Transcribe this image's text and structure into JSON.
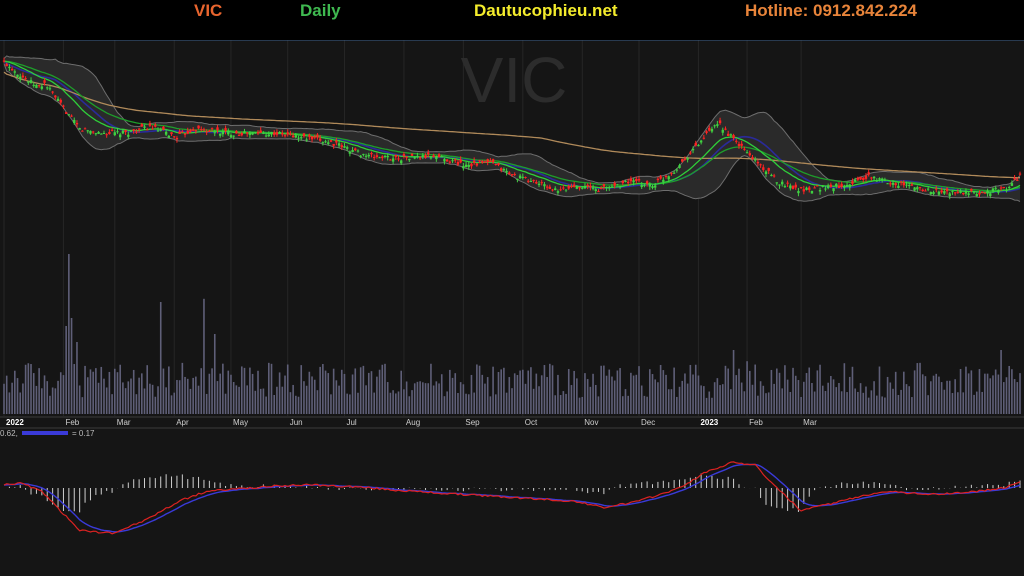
{
  "header": {
    "symbol": "VIC",
    "period": "Daily",
    "site": "Dautucophieu.net",
    "hotline": "Hotline: 0912.842.224"
  },
  "watermark": "VIC",
  "colors": {
    "background": "#000000",
    "up_candle": "#3fd140",
    "down_candle": "#ff2222",
    "ema_slow": "#1e9e2a",
    "ema_fast": "#2fcf3a",
    "ma200": "#b08a5a",
    "bollinger": "#6e6e6e",
    "volume": "#5f5f78",
    "macd": "#dd2222",
    "signal": "#3a3ad8",
    "histogram": "#cfcfcf"
  },
  "chart_data": {
    "type": "candlestick",
    "x_labels": [
      "2022",
      "Feb",
      "Mar",
      "Apr",
      "May",
      "Jun",
      "Jul",
      "Aug",
      "Sep",
      "Oct",
      "Nov",
      "Dec",
      "2023",
      "Feb",
      "Mar"
    ],
    "bold_labels": [
      "2022",
      "2023"
    ],
    "indicators": [
      "Bollinger Bands",
      "EMA",
      "MA",
      "Volume",
      "MACD"
    ],
    "macd_legend_left": "0.62,",
    "macd_legend_right": "= 0.17",
    "price_anchors": [
      [
        0,
        84
      ],
      [
        4,
        80
      ],
      [
        9,
        75
      ],
      [
        13,
        72
      ],
      [
        15,
        74
      ],
      [
        22,
        62
      ],
      [
        28,
        52
      ],
      [
        36,
        50
      ],
      [
        45,
        50
      ],
      [
        54,
        53
      ],
      [
        64,
        48
      ],
      [
        70,
        52
      ],
      [
        84,
        50
      ],
      [
        100,
        50
      ],
      [
        120,
        46
      ],
      [
        135,
        39
      ],
      [
        145,
        38
      ],
      [
        160,
        39
      ],
      [
        170,
        35
      ],
      [
        180,
        36
      ],
      [
        188,
        30
      ],
      [
        198,
        26
      ],
      [
        205,
        22
      ],
      [
        212,
        25
      ],
      [
        220,
        23
      ],
      [
        232,
        27
      ],
      [
        240,
        25
      ],
      [
        248,
        32
      ],
      [
        255,
        42
      ],
      [
        262,
        52
      ],
      [
        265,
        54
      ],
      [
        270,
        47
      ],
      [
        278,
        37
      ],
      [
        286,
        27
      ],
      [
        295,
        23
      ],
      [
        310,
        25
      ],
      [
        320,
        29
      ],
      [
        330,
        26
      ],
      [
        345,
        22
      ],
      [
        360,
        21
      ],
      [
        372,
        24
      ],
      [
        376,
        30
      ]
    ],
    "volume_spikes": [
      [
        24,
        100
      ],
      [
        23,
        55
      ],
      [
        25,
        60
      ],
      [
        27,
        45
      ],
      [
        58,
        70
      ],
      [
        74,
        72
      ],
      [
        78,
        50
      ],
      [
        270,
        40
      ],
      [
        275,
        33
      ],
      [
        369,
        40
      ],
      [
        373,
        28
      ]
    ],
    "macd_anchors": [
      [
        0,
        0.5
      ],
      [
        6,
        0.8
      ],
      [
        14,
        -0.5
      ],
      [
        22,
        -4
      ],
      [
        28,
        -6.5
      ],
      [
        40,
        -7
      ],
      [
        52,
        -5
      ],
      [
        65,
        -2
      ],
      [
        75,
        -0.5
      ],
      [
        90,
        0
      ],
      [
        110,
        0.5
      ],
      [
        130,
        0.2
      ],
      [
        150,
        -0.5
      ],
      [
        170,
        -1
      ],
      [
        190,
        -1.5
      ],
      [
        210,
        -2
      ],
      [
        222,
        -3
      ],
      [
        235,
        -2
      ],
      [
        250,
        0
      ],
      [
        260,
        2.5
      ],
      [
        270,
        4
      ],
      [
        278,
        3.5
      ],
      [
        286,
        0
      ],
      [
        295,
        -3.5
      ],
      [
        310,
        -2
      ],
      [
        325,
        -0.5
      ],
      [
        345,
        -1
      ],
      [
        360,
        -0.5
      ],
      [
        370,
        0
      ],
      [
        376,
        1
      ]
    ],
    "macd_range": [
      -8,
      5
    ]
  }
}
